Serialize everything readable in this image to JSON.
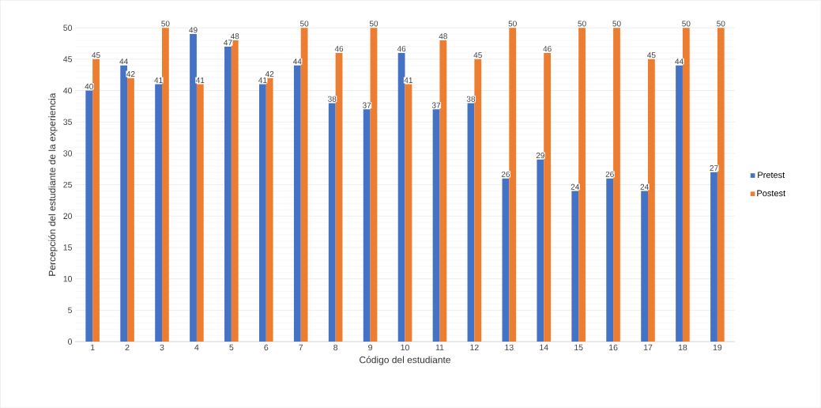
{
  "chart_data": {
    "type": "bar",
    "xlabel": "Código del estudiante",
    "ylabel": "Percepción del estudiante de la experiencia",
    "categories": [
      "1",
      "2",
      "3",
      "4",
      "5",
      "6",
      "7",
      "8",
      "9",
      "10",
      "11",
      "12",
      "13",
      "14",
      "15",
      "16",
      "17",
      "18",
      "19"
    ],
    "series": [
      {
        "name": "Pretest",
        "color": "#4472c4",
        "values": [
          40,
          44,
          41,
          49,
          47,
          41,
          44,
          38,
          37,
          46,
          37,
          38,
          26,
          29,
          24,
          26,
          24,
          44,
          27
        ]
      },
      {
        "name": "Postest",
        "color": "#ed7d31",
        "values": [
          45,
          42,
          50,
          41,
          48,
          42,
          50,
          46,
          50,
          41,
          48,
          45,
          50,
          46,
          50,
          50,
          45,
          50,
          50
        ]
      }
    ],
    "ylim": [
      0,
      50
    ],
    "yticks": [
      0,
      5,
      10,
      15,
      20,
      25,
      30,
      35,
      40,
      45,
      50
    ],
    "grid": "y",
    "legend": "right",
    "data_labels": true
  }
}
